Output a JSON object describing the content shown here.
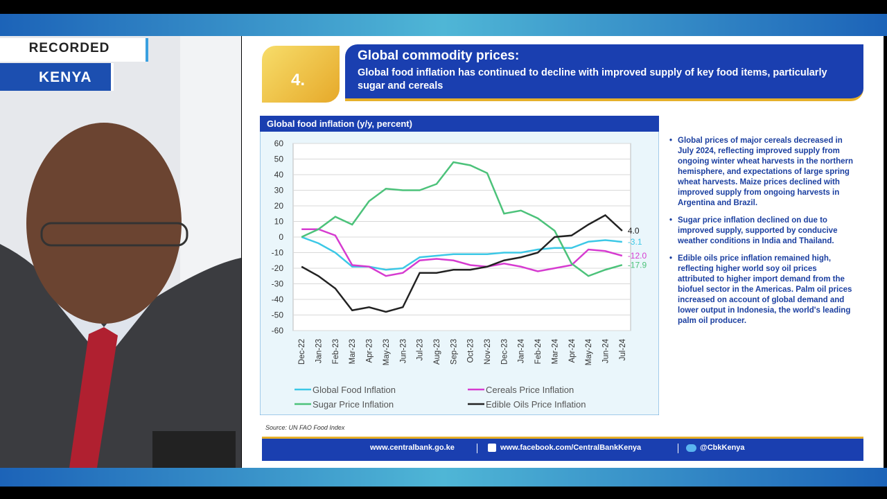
{
  "overlay": {
    "status": "RECORDED",
    "location": "KENYA"
  },
  "slide": {
    "number": "4.",
    "title": "Global commodity prices:",
    "subtitle": "Global food inflation has continued to decline with improved supply of key food items, particularly sugar and cereals",
    "bullets": [
      "Global prices of major cereals decreased in July 2024, reflecting improved supply from ongoing winter wheat harvests in the northern hemisphere, and expectations of large spring wheat harvests. Maize prices declined with improved supply from ongoing harvests in Argentina and Brazil.",
      "Sugar price inflation declined on due to improved supply, supported by conducive weather conditions in India and Thailand.",
      "Edible oils price inflation remained high, reflecting higher world soy oil prices attributed to higher import demand from the biofuel sector in the Americas. Palm oil prices increased on account of global demand and lower output in Indonesia, the world's leading palm oil producer."
    ],
    "source": "Source: UN FAO Food Index",
    "footer": [
      "www.centralbank.go.ke",
      "www.facebook.com/CentralBankKenya",
      "@CbkKenya"
    ]
  },
  "chart_data": {
    "type": "line",
    "title": "Global food inflation (y/y, percent)",
    "categories": [
      "Dec-22",
      "Jan-23",
      "Feb-23",
      "Mar-23",
      "Apr-23",
      "May-23",
      "Jun-23",
      "Jul-23",
      "Aug-23",
      "Sep-23",
      "Oct-23",
      "Nov-23",
      "Dec-23",
      "Jan-24",
      "Feb-24",
      "Mar-24",
      "Apr-24",
      "May-24",
      "Jun-24",
      "Jul-24"
    ],
    "series": [
      {
        "name": "Global Food Inflation",
        "color": "#3cc8e6",
        "values": [
          0,
          -4,
          -10,
          -19,
          -19,
          -21,
          -20,
          -13,
          -12,
          -11,
          -11,
          -11,
          -10,
          -10,
          -8,
          -7,
          -7,
          -3,
          -2,
          -3.1
        ],
        "value_labels": [
          null,
          null,
          null,
          null,
          null,
          null,
          null,
          null,
          null,
          null,
          null,
          null,
          null,
          null,
          null,
          null,
          null,
          null,
          null,
          "-3.1"
        ]
      },
      {
        "name": "Cereals Price Inflation",
        "color": "#d63bd0",
        "values": [
          5,
          5,
          1,
          -18,
          -19,
          -25,
          -23,
          -15,
          -14,
          -15,
          -18,
          -19,
          -17,
          -19,
          -22,
          -20,
          -18,
          -8,
          -9,
          -12
        ],
        "value_labels": [
          null,
          null,
          null,
          null,
          null,
          null,
          null,
          null,
          null,
          null,
          null,
          null,
          null,
          null,
          null,
          null,
          null,
          null,
          null,
          "-12.0"
        ]
      },
      {
        "name": "Sugar Price Inflation",
        "color": "#4cc27a",
        "values": [
          0,
          5,
          13,
          8,
          23,
          31,
          30,
          30,
          34,
          48,
          46,
          41,
          15,
          17,
          12,
          4,
          -17,
          -25,
          -21,
          -17.9
        ],
        "value_labels": [
          null,
          null,
          null,
          null,
          null,
          null,
          null,
          null,
          null,
          null,
          null,
          null,
          null,
          null,
          null,
          null,
          null,
          null,
          null,
          "-17.9"
        ]
      },
      {
        "name": "Edible Oils Price Inflation",
        "color": "#222222",
        "values": [
          -19,
          -25,
          -33,
          -47,
          -45,
          -48,
          -45,
          -23,
          -23,
          -21,
          -21,
          -19,
          -15,
          -13,
          -10,
          0,
          1,
          8,
          14,
          4
        ],
        "value_labels": [
          null,
          null,
          null,
          null,
          null,
          null,
          null,
          null,
          null,
          null,
          null,
          null,
          null,
          null,
          null,
          null,
          null,
          null,
          null,
          "4.0"
        ]
      }
    ],
    "ylim": [
      -60,
      60
    ],
    "yticks": [
      -60,
      -50,
      -40,
      -30,
      -20,
      -10,
      0,
      10,
      20,
      30,
      40,
      50,
      60
    ],
    "grid": true
  }
}
